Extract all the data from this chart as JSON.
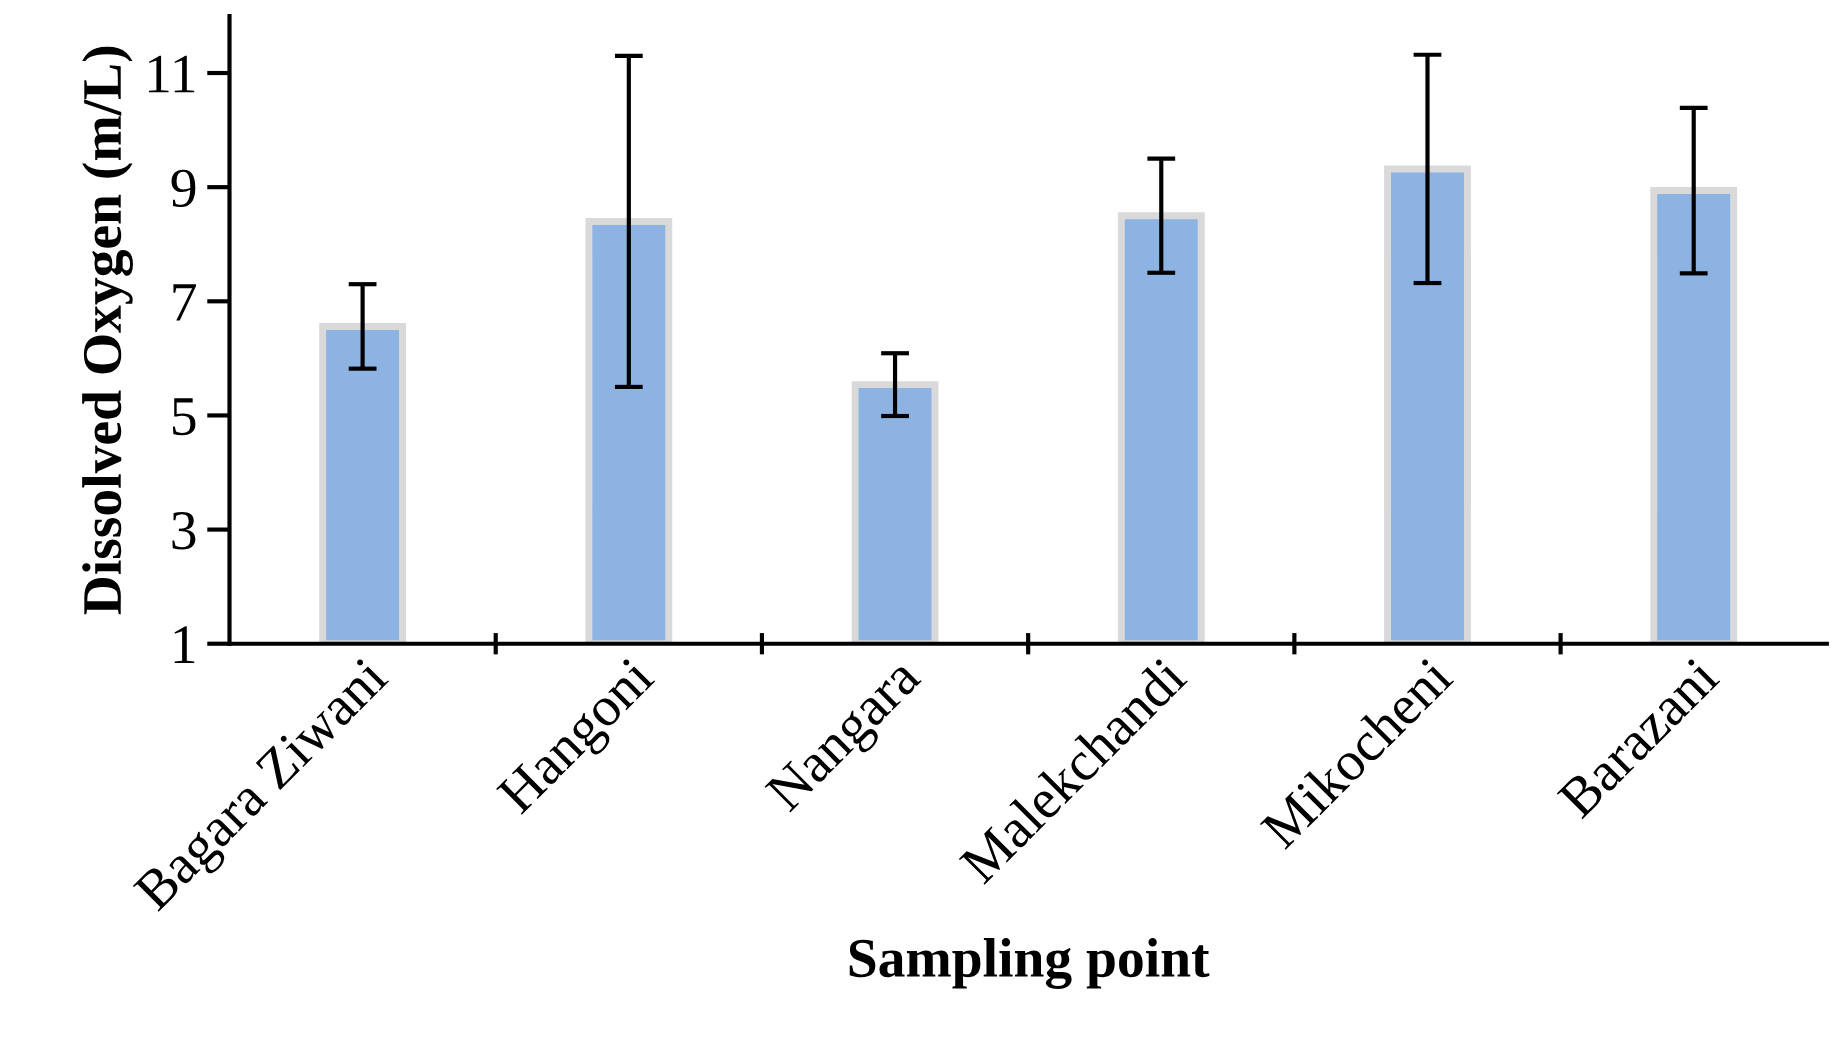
{
  "chart_data": {
    "type": "bar",
    "xlabel": "Sampling point",
    "ylabel": "Dissolved Oxygen (m/L)",
    "categories": [
      "Bagara Ziwani",
      "Hangoni",
      "Nangara",
      "Malekchandi",
      "Mikocheni",
      "Barazani"
    ],
    "values": [
      6.56,
      8.4,
      5.54,
      8.5,
      9.32,
      8.94
    ],
    "errors": [
      0.74,
      2.9,
      0.55,
      1.0,
      2.0,
      1.45
    ],
    "color": "#8db3e2",
    "ylim": [
      1,
      12
    ],
    "yticks": [
      1,
      3,
      5,
      7,
      9,
      11
    ],
    "grid": false
  }
}
